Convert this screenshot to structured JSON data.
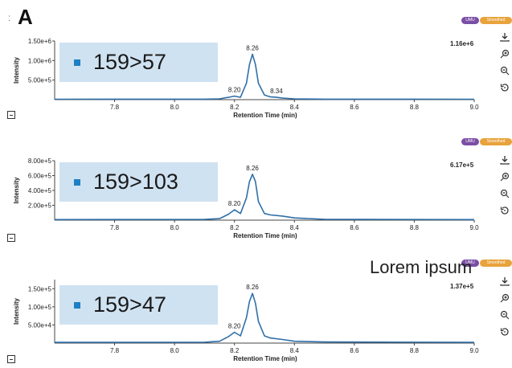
{
  "figure": {
    "panel_label": "A",
    "overlay_text": "Lorem ipsum",
    "badges": {
      "umi": "UMU",
      "smoothed": "Smoothed"
    },
    "toolbar_icons": [
      "download-icon",
      "zoom-in-icon",
      "zoom-out-icon",
      "reset-icon"
    ]
  },
  "chart_data": [
    {
      "type": "line",
      "title": "",
      "legend": "159>57",
      "xlabel": "Retention Time (min)",
      "ylabel": "Intensity",
      "max_label": "1.16e+6",
      "xlim": [
        7.6,
        9.0
      ],
      "ylim": [
        0,
        1500000
      ],
      "xticks": [
        "7.8",
        "8.0",
        "8.2",
        "8.4",
        "8.6",
        "8.8",
        "9.0"
      ],
      "yticks": [
        "5.00e+5",
        "1.00e+6",
        "1.50e+6"
      ],
      "ytick_values": [
        500000,
        1000000,
        1500000
      ],
      "peak_labels": [
        {
          "label": "8.20",
          "x": 8.2,
          "y": 90000
        },
        {
          "label": "8.26",
          "x": 8.26,
          "y": 1160000
        },
        {
          "label": "8.34",
          "x": 8.34,
          "y": 60000
        }
      ],
      "series": [
        {
          "x": [
            7.6,
            8.1,
            8.15,
            8.18,
            8.2,
            8.22,
            8.24,
            8.25,
            8.26,
            8.27,
            8.28,
            8.3,
            8.32,
            8.34,
            8.36,
            8.4,
            8.5,
            9.0
          ],
          "values": [
            10000,
            12000,
            20000,
            60000,
            90000,
            60000,
            420000,
            900000,
            1160000,
            900000,
            420000,
            120000,
            70000,
            60000,
            40000,
            20000,
            12000,
            10000
          ]
        }
      ],
      "line_color": "#2f6fa8"
    },
    {
      "type": "line",
      "title": "",
      "legend": "159>103",
      "xlabel": "Retention Time (min)",
      "ylabel": "Intensity",
      "max_label": "6.17e+5",
      "xlim": [
        7.6,
        9.0
      ],
      "ylim": [
        0,
        800000
      ],
      "xticks": [
        "7.8",
        "8.0",
        "8.2",
        "8.4",
        "8.6",
        "8.8",
        "9.0"
      ],
      "yticks": [
        "2.00e+5",
        "4.00e+5",
        "6.00e+5",
        "8.00e+5"
      ],
      "ytick_values": [
        200000,
        400000,
        600000,
        800000
      ],
      "peak_labels": [
        {
          "label": "8.20",
          "x": 8.2,
          "y": 140000
        },
        {
          "label": "8.26",
          "x": 8.26,
          "y": 617000
        }
      ],
      "series": [
        {
          "x": [
            7.6,
            8.1,
            8.15,
            8.18,
            8.2,
            8.22,
            8.24,
            8.25,
            8.26,
            8.27,
            8.28,
            8.3,
            8.32,
            8.36,
            8.4,
            8.5,
            9.0
          ],
          "values": [
            8000,
            10000,
            20000,
            80000,
            140000,
            90000,
            300000,
            520000,
            617000,
            520000,
            250000,
            90000,
            70000,
            55000,
            30000,
            12000,
            8000
          ]
        }
      ],
      "line_color": "#2f6fa8"
    },
    {
      "type": "line",
      "title": "",
      "legend": "159>47",
      "xlabel": "Retention Time (min)",
      "ylabel": "Intensity",
      "max_label": "1.37e+5",
      "xlim": [
        7.6,
        9.0
      ],
      "ylim": [
        0,
        175000
      ],
      "xticks": [
        "7.8",
        "8.0",
        "8.2",
        "8.4",
        "8.6",
        "8.8",
        "9.0"
      ],
      "yticks": [
        "5.00e+4",
        "1.00e+5",
        "1.50e+5"
      ],
      "ytick_values": [
        50000,
        100000,
        150000
      ],
      "peak_labels": [
        {
          "label": "8.20",
          "x": 8.2,
          "y": 30000
        },
        {
          "label": "8.26",
          "x": 8.26,
          "y": 137000
        }
      ],
      "series": [
        {
          "x": [
            7.6,
            8.1,
            8.15,
            8.18,
            8.2,
            8.22,
            8.24,
            8.25,
            8.26,
            8.27,
            8.28,
            8.3,
            8.32,
            8.36,
            8.4,
            8.5,
            9.0
          ],
          "values": [
            2000,
            2500,
            5000,
            18000,
            30000,
            20000,
            70000,
            115000,
            137000,
            110000,
            60000,
            20000,
            14000,
            10000,
            5000,
            3000,
            2000
          ]
        }
      ],
      "line_color": "#2f6fa8"
    }
  ]
}
